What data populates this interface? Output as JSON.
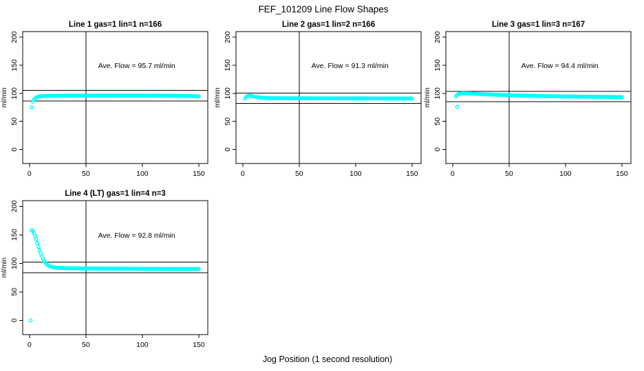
{
  "figure": {
    "title": "FEF_101209  Line Flow Shapes",
    "xlabel": "Jog Position (1 second resolution)",
    "ylabel": "ml/min",
    "marker_color": "#00FFFF",
    "axis_color": "#000000",
    "background_color": "#FFFFFF",
    "axes": {
      "xlim": [
        -6,
        158
      ],
      "ylim": [
        -25,
        210
      ],
      "x_ticks": [
        0,
        50,
        100,
        150
      ],
      "y_ticks": [
        0,
        50,
        100,
        150,
        200
      ]
    }
  },
  "chart_data": [
    {
      "type": "scatter",
      "title": "Line 1 gas=1 lin=1 n=166",
      "annotation": "Ave. Flow =  95.7  ml/min",
      "ave_flow_ml_min": 95.7,
      "n": 166,
      "vline_x": 50,
      "hlines": [
        105.3,
        86.1
      ],
      "keypoints": [
        [
          2,
          75
        ],
        [
          3,
          85
        ],
        [
          4,
          88.5
        ],
        [
          5,
          91
        ],
        [
          6,
          92.5
        ],
        [
          7,
          93.5
        ],
        [
          8,
          94.2
        ],
        [
          10,
          95
        ],
        [
          14,
          95.4
        ],
        [
          20,
          95.6
        ],
        [
          30,
          95.8
        ],
        [
          50,
          95.9
        ],
        [
          80,
          96
        ],
        [
          120,
          95.8
        ],
        [
          140,
          95.4
        ],
        [
          146,
          95
        ],
        [
          150,
          94.5
        ]
      ],
      "outliers": []
    },
    {
      "type": "scatter",
      "title": "Line 2 gas=1 lin=2 n=166",
      "annotation": "Ave. Flow =  91.3  ml/min",
      "ave_flow_ml_min": 91.3,
      "n": 166,
      "vline_x": 50,
      "hlines": [
        100.4,
        82.2
      ],
      "keypoints": [
        [
          2,
          90.5
        ],
        [
          3,
          93.5
        ],
        [
          4,
          95
        ],
        [
          5,
          95.8
        ],
        [
          6,
          96
        ],
        [
          7,
          95.7
        ],
        [
          8,
          95.2
        ],
        [
          10,
          94.3
        ],
        [
          12,
          93.4
        ],
        [
          15,
          92.5
        ],
        [
          18,
          92
        ],
        [
          22,
          91.6
        ],
        [
          30,
          91.3
        ],
        [
          50,
          91.2
        ],
        [
          80,
          91.1
        ],
        [
          120,
          91
        ],
        [
          150,
          90.8
        ]
      ],
      "outliers": []
    },
    {
      "type": "scatter",
      "title": "Line 3 gas=1 lin=3 n=167",
      "annotation": "Ave. Flow =  94.4  ml/min",
      "ave_flow_ml_min": 94.4,
      "n": 167,
      "vline_x": 50,
      "hlines": [
        103.8,
        85.0
      ],
      "keypoints": [
        [
          3,
          94.5
        ],
        [
          4,
          97
        ],
        [
          5,
          98.5
        ],
        [
          6,
          99.3
        ],
        [
          8,
          100
        ],
        [
          12,
          100
        ],
        [
          16,
          99.6
        ],
        [
          20,
          99.2
        ],
        [
          25,
          98.7
        ],
        [
          30,
          98.2
        ],
        [
          40,
          97.4
        ],
        [
          50,
          96.7
        ],
        [
          60,
          96.1
        ],
        [
          80,
          95.2
        ],
        [
          100,
          94.5
        ],
        [
          120,
          94
        ],
        [
          150,
          93.3
        ]
      ],
      "outliers": [
        [
          4,
          76
        ]
      ]
    },
    {
      "type": "scatter",
      "title": "Line 4 (LT) gas=1 lin=4 n=3",
      "annotation": "Ave. Flow =  92.8  ml/min",
      "ave_flow_ml_min": 92.8,
      "n": 3,
      "vline_x": 50,
      "hlines": [
        102.1,
        83.5
      ],
      "keypoints": [
        [
          2,
          158
        ],
        [
          3,
          156.5
        ],
        [
          4,
          153
        ],
        [
          5,
          148
        ],
        [
          6,
          142
        ],
        [
          7,
          135.5
        ],
        [
          8,
          129
        ],
        [
          9,
          123
        ],
        [
          10,
          117.5
        ],
        [
          11,
          112.5
        ],
        [
          12,
          108
        ],
        [
          13,
          104.5
        ],
        [
          14,
          101.5
        ],
        [
          15,
          99
        ],
        [
          16,
          97.2
        ],
        [
          17,
          95.8
        ],
        [
          18,
          94.8
        ],
        [
          19,
          94
        ],
        [
          20,
          93.4
        ],
        [
          22,
          92.7
        ],
        [
          25,
          92.1
        ],
        [
          30,
          91.6
        ],
        [
          40,
          91.2
        ],
        [
          50,
          91
        ],
        [
          70,
          90.7
        ],
        [
          100,
          90.4
        ],
        [
          150,
          90
        ]
      ],
      "outliers": [
        [
          1,
          0
        ]
      ]
    }
  ]
}
